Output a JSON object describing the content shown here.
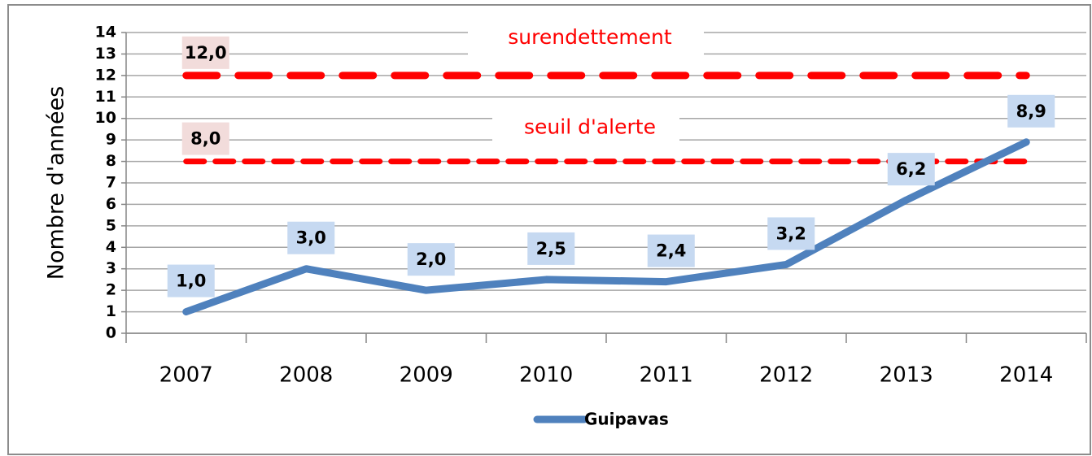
{
  "chart_data": {
    "type": "line",
    "y_label": "Nombre d'années",
    "categories": [
      "2007",
      "2008",
      "2009",
      "2010",
      "2011",
      "2012",
      "2013",
      "2014"
    ],
    "series": [
      {
        "name": "Guipavas",
        "color": "#4f81bd",
        "values": [
          1.0,
          3.0,
          2.0,
          2.5,
          2.4,
          3.2,
          6.2,
          8.9
        ],
        "value_labels": [
          "1,0",
          "3,0",
          "2,0",
          "2,5",
          "2,4",
          "3,2",
          "6,2",
          "8,9"
        ]
      }
    ],
    "reference_lines": [
      {
        "value": 12,
        "label": "12,0",
        "annotation": "surendettement",
        "color": "#ff0000"
      },
      {
        "value": 8,
        "label": "8,0",
        "annotation": "seuil d'alerte",
        "color": "#ff0000"
      }
    ],
    "ylim": [
      0,
      14
    ],
    "yticks": [
      0,
      1,
      2,
      3,
      4,
      5,
      6,
      7,
      8,
      9,
      10,
      11,
      12,
      13,
      14
    ],
    "grid": true,
    "legend": "bottom"
  }
}
